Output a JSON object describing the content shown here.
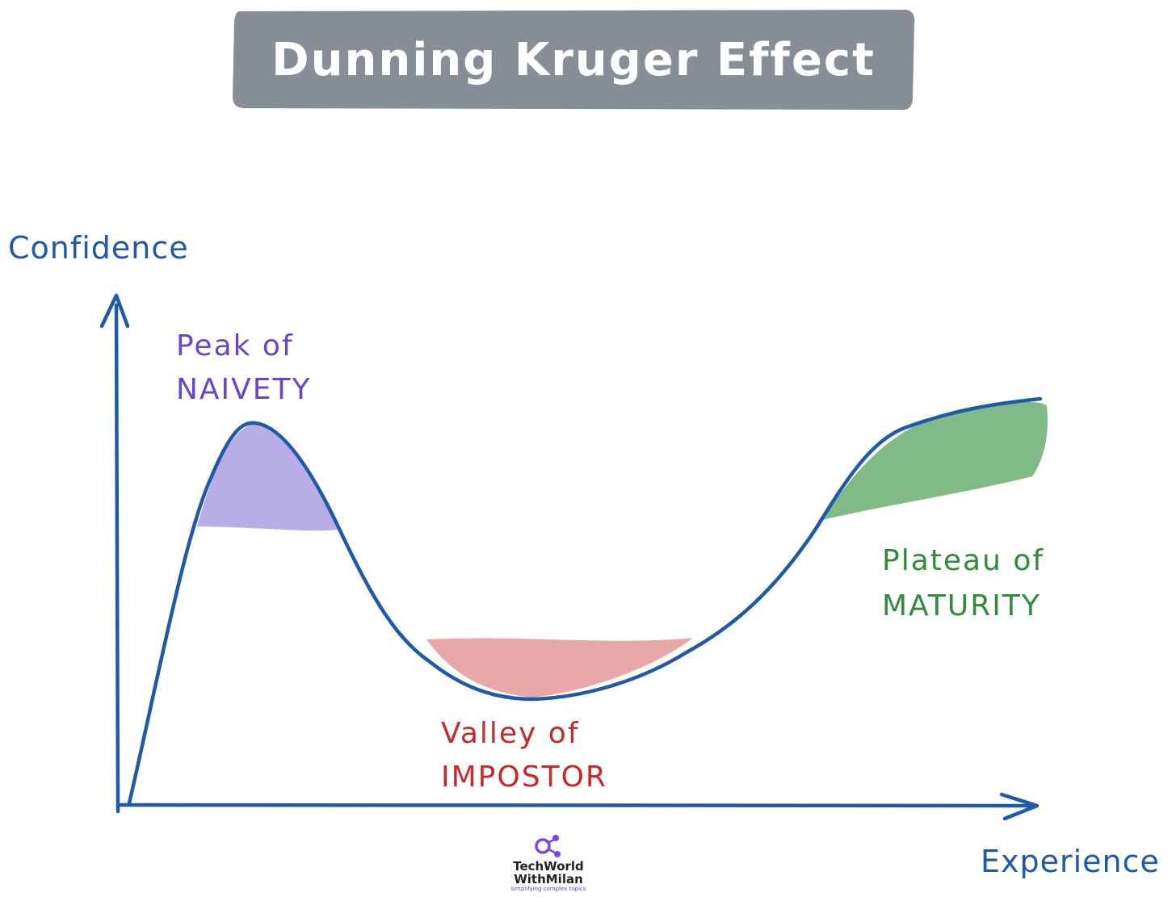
{
  "title": "Dunning Kruger Effect",
  "axes": {
    "y_label": "Confidence",
    "x_label": "Experience"
  },
  "regions": [
    {
      "id": "peak",
      "line1": "Peak of",
      "line2": "NAIVETY",
      "color": "#6a45c9",
      "fill": "#b9ade8"
    },
    {
      "id": "valley",
      "line1": "Valley of",
      "line2": "IMPOSTOR",
      "color": "#c42a2a",
      "fill": "#e8a8a8"
    },
    {
      "id": "plateau",
      "line1": "Plateau of",
      "line2": "MATURITY",
      "color": "#2f8a3c",
      "fill": "#80bb87"
    }
  ],
  "colors": {
    "title_box": "#888e97",
    "curve": "#1e5aa8",
    "axis": "#1e5aa8"
  },
  "logo": {
    "line1": "TechWorld",
    "line2": "WithMilan",
    "tagline": "simplifying complex topics",
    "icon": "molecule-icon"
  }
}
